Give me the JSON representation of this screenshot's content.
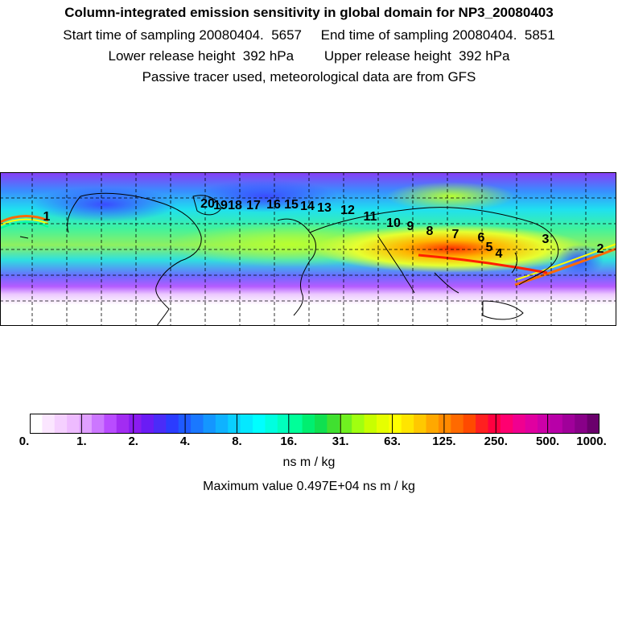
{
  "header": {
    "title": "Column-integrated emission sensitivity in global domain for NP3_20080403",
    "line2": "Start time of sampling 20080404.  5657     End time of sampling 20080404.  5851",
    "line3": "Lower release height  392 hPa        Upper release height  392 hPa",
    "line4": "Passive tracer used, meteorological data are from GFS"
  },
  "chart_data": {
    "type": "heatmap",
    "title": "Column-integrated emission sensitivity in global domain for NP3_20080403",
    "colorbar": {
      "tick_labels": [
        "0.",
        "1.",
        "2.",
        "4.",
        "8.",
        "16.",
        "31.",
        "63.",
        "125.",
        "250.",
        "500.",
        "1000."
      ],
      "unit": "ns m / kg",
      "colors": [
        "#ffffff",
        "#fbe6ff",
        "#f5d0ff",
        "#eebbff",
        "#e0a0ff",
        "#cc77ff",
        "#b94cff",
        "#a22cf2",
        "#8a1cf0",
        "#6a1cf5",
        "#4a2cf8",
        "#2b3cff",
        "#1f5aff",
        "#1a78ff",
        "#1496ff",
        "#0fb2ff",
        "#0acfff",
        "#05e8ff",
        "#00ffff",
        "#00ffe0",
        "#00ffbe",
        "#00ff99",
        "#00ef70",
        "#10e050",
        "#40e030",
        "#70f020",
        "#a0ff10",
        "#c8ff00",
        "#e6ff00",
        "#ffff00",
        "#ffe500",
        "#ffc800",
        "#ffa800",
        "#ff8a00",
        "#ff6a00",
        "#ff4a00",
        "#ff2020",
        "#ff0040",
        "#ff0070",
        "#f00090",
        "#e000a0",
        "#cc00a8",
        "#b800a8",
        "#a0009a",
        "#880088",
        "#6a006c"
      ]
    },
    "maximum_label": "Maximum value  0.497E+04 ns m / kg",
    "trajectory_labels": [
      "1",
      "2",
      "3",
      "4",
      "5",
      "6",
      "7",
      "8",
      "9",
      "10",
      "11",
      "12",
      "13",
      "14",
      "15",
      "16",
      "17",
      "18",
      "19",
      "20"
    ]
  }
}
